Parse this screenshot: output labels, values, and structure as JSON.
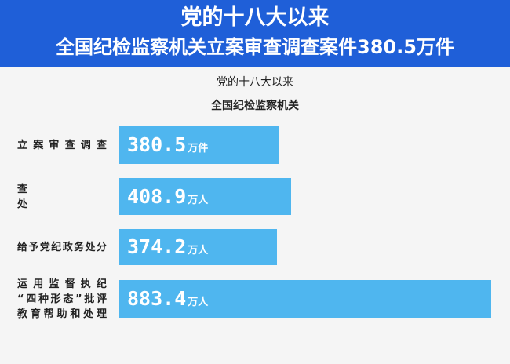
{
  "header": {
    "line1": "党的十八大以来",
    "line2": "全国纪检监察机关立案审查调查案件380.5万件"
  },
  "subtitle": {
    "line1": "党的十八大以来",
    "line2": "全国纪检监察机关"
  },
  "chart_data": {
    "type": "bar",
    "orientation": "horizontal",
    "categories": [
      "立案审查调查",
      "查处",
      "给予党纪政务处分",
      "运用监督执纪“四种形态”批评教育帮助和处理"
    ],
    "category_lines": [
      [
        "立案审查调查"
      ],
      [
        "查",
        "处"
      ],
      [
        "给予党纪政务处分"
      ],
      [
        "运用监督执纪",
        "“四种形态”批评",
        "教育帮助和处理"
      ]
    ],
    "values": [
      380.5,
      408.9,
      374.2,
      883.4
    ],
    "value_labels": [
      "380.5",
      "408.9",
      "374.2",
      "883.4"
    ],
    "units": [
      "万件",
      "万人",
      "万人",
      "万人"
    ],
    "title": "",
    "xlabel": "",
    "ylabel": "",
    "grid": false,
    "legend": "none",
    "colors": {
      "bar": "#4fb6ef",
      "banner": "#1f5fd8",
      "background": "#f5f5f5"
    }
  }
}
